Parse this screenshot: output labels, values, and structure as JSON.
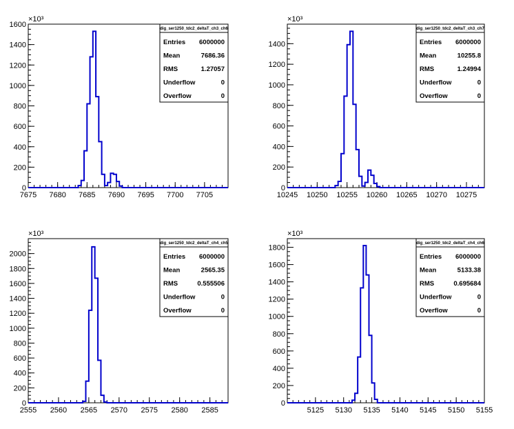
{
  "chart_data": [
    {
      "type": "histogram",
      "stats_title": "dig_ser1250_tdc2_deltaT_ch3_ch6",
      "stats": {
        "entries": "6000000",
        "mean": "7686.36",
        "rms": "1.27057",
        "underflow": "0",
        "overflow": "0"
      },
      "x_ticks": [
        "7675",
        "7680",
        "7685",
        "7690",
        "7695",
        "7700",
        "7705"
      ],
      "y_ticks": [
        "0",
        "200",
        "400",
        "600",
        "800",
        "1000",
        "1200",
        "1400",
        "1600"
      ],
      "y_multiplier": "×10³",
      "xlim": [
        7675,
        7709
      ],
      "ylim": [
        0,
        1600
      ],
      "bin_width": 0.5,
      "bins": [
        {
          "x": 7683.5,
          "y": 20
        },
        {
          "x": 7684.0,
          "y": 70
        },
        {
          "x": 7684.5,
          "y": 360
        },
        {
          "x": 7685.0,
          "y": 820
        },
        {
          "x": 7685.5,
          "y": 1280
        },
        {
          "x": 7686.0,
          "y": 1530
        },
        {
          "x": 7686.5,
          "y": 890
        },
        {
          "x": 7687.0,
          "y": 450
        },
        {
          "x": 7687.5,
          "y": 130
        },
        {
          "x": 7688.0,
          "y": 20
        },
        {
          "x": 7688.5,
          "y": 50
        },
        {
          "x": 7689.0,
          "y": 140
        },
        {
          "x": 7689.5,
          "y": 130
        },
        {
          "x": 7690.0,
          "y": 60
        },
        {
          "x": 7690.5,
          "y": 15
        }
      ]
    },
    {
      "type": "histogram",
      "stats_title": "dig_ser1250_tdc2_deltaT_ch3_ch7",
      "stats": {
        "entries": "6000000",
        "mean": "10255.8",
        "rms": "1.24994",
        "underflow": "0",
        "overflow": "0"
      },
      "x_ticks": [
        "10245",
        "10250",
        "10255",
        "10260",
        "10265",
        "10270",
        "10275"
      ],
      "y_ticks": [
        "0",
        "200",
        "400",
        "600",
        "800",
        "1000",
        "1200",
        "1400"
      ],
      "y_multiplier": "×10³",
      "xlim": [
        10245,
        10278
      ],
      "ylim": [
        0,
        1590
      ],
      "bin_width": 0.5,
      "bins": [
        {
          "x": 10253.0,
          "y": 20
        },
        {
          "x": 10253.5,
          "y": 60
        },
        {
          "x": 10254.0,
          "y": 330
        },
        {
          "x": 10254.5,
          "y": 890
        },
        {
          "x": 10255.0,
          "y": 1390
        },
        {
          "x": 10255.5,
          "y": 1520
        },
        {
          "x": 10256.0,
          "y": 810
        },
        {
          "x": 10256.5,
          "y": 370
        },
        {
          "x": 10257.0,
          "y": 110
        },
        {
          "x": 10257.5,
          "y": 15
        },
        {
          "x": 10258.0,
          "y": 50
        },
        {
          "x": 10258.5,
          "y": 170
        },
        {
          "x": 10259.0,
          "y": 120
        },
        {
          "x": 10259.5,
          "y": 40
        },
        {
          "x": 10260.0,
          "y": 10
        }
      ]
    },
    {
      "type": "histogram",
      "stats_title": "dig_ser1250_tdc2_deltaT_ch4_ch5",
      "stats": {
        "entries": "6000000",
        "mean": "2565.35",
        "rms": "0.555506",
        "underflow": "0",
        "overflow": "0"
      },
      "x_ticks": [
        "2555",
        "2560",
        "2565",
        "2570",
        "2575",
        "2580",
        "2585"
      ],
      "y_ticks": [
        "0",
        "200",
        "400",
        "600",
        "800",
        "1000",
        "1200",
        "1400",
        "1600",
        "1800",
        "2000"
      ],
      "y_multiplier": "×10³",
      "xlim": [
        2555,
        2588
      ],
      "ylim": [
        0,
        2200
      ],
      "bin_width": 0.5,
      "bins": [
        {
          "x": 2564.0,
          "y": 20
        },
        {
          "x": 2564.5,
          "y": 290
        },
        {
          "x": 2565.0,
          "y": 1240
        },
        {
          "x": 2565.5,
          "y": 2090
        },
        {
          "x": 2566.0,
          "y": 1670
        },
        {
          "x": 2566.5,
          "y": 570
        },
        {
          "x": 2567.0,
          "y": 100
        },
        {
          "x": 2567.5,
          "y": 10
        }
      ]
    },
    {
      "type": "histogram",
      "stats_title": "dig_ser1250_tdc2_deltaT_ch4_ch6",
      "stats": {
        "entries": "6000000",
        "mean": "5133.38",
        "rms": "0.695684",
        "underflow": "0",
        "overflow": "0"
      },
      "x_ticks": [
        "5125",
        "5130",
        "5135",
        "5140",
        "5145",
        "5150",
        "5155"
      ],
      "y_ticks": [
        "0",
        "200",
        "400",
        "600",
        "800",
        "1000",
        "1200",
        "1400",
        "1600",
        "1800"
      ],
      "y_multiplier": "×10³",
      "xlim": [
        5120,
        5155
      ],
      "ylim": [
        0,
        1900
      ],
      "bin_width": 0.5,
      "bins": [
        {
          "x": 5131.5,
          "y": 30
        },
        {
          "x": 5132.0,
          "y": 110
        },
        {
          "x": 5132.5,
          "y": 530
        },
        {
          "x": 5133.0,
          "y": 1330
        },
        {
          "x": 5133.5,
          "y": 1820
        },
        {
          "x": 5134.0,
          "y": 1480
        },
        {
          "x": 5134.5,
          "y": 780
        },
        {
          "x": 5135.0,
          "y": 230
        },
        {
          "x": 5135.5,
          "y": 40
        }
      ]
    }
  ],
  "stats_labels": {
    "entries": "Entries",
    "mean": "Mean",
    "rms": "RMS",
    "underflow": "Underflow",
    "overflow": "Overflow"
  },
  "colors": {
    "histogram_line": "#0000cc",
    "frame": "#000000",
    "background": "#ffffff"
  }
}
